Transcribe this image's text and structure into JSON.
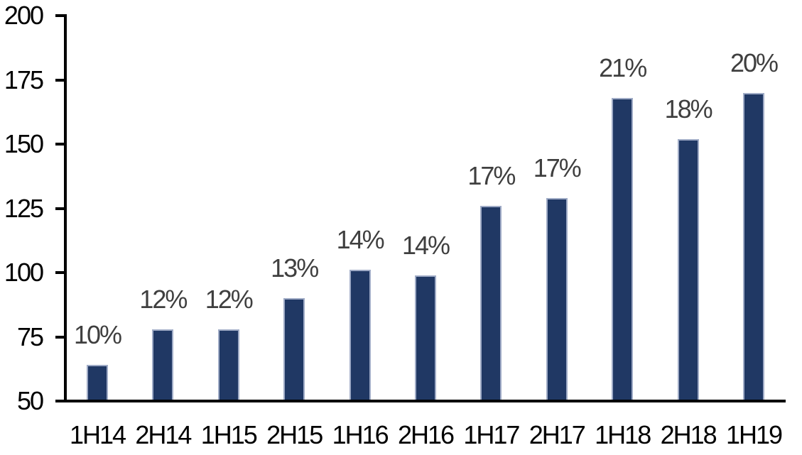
{
  "chart_data": {
    "type": "bar",
    "title": "",
    "xlabel": "",
    "ylabel": "",
    "categories": [
      "1H14",
      "2H14",
      "1H15",
      "2H15",
      "1H16",
      "2H16",
      "1H17",
      "2H17",
      "1H18",
      "2H18",
      "1H19"
    ],
    "series": [
      {
        "name": "value",
        "values": [
          64,
          78,
          78,
          90,
          101,
          99,
          126,
          129,
          168,
          152,
          170
        ],
        "data_labels": [
          "10%",
          "12%",
          "12%",
          "13%",
          "14%",
          "14%",
          "17%",
          "17%",
          "21%",
          "18%",
          "20%"
        ]
      }
    ],
    "ylim": [
      50,
      200
    ],
    "yticks": [
      50,
      75,
      100,
      125,
      150,
      175,
      200
    ],
    "grid": false,
    "legend_position": "none",
    "colors": {
      "bar_fill": "#203864",
      "bar_border": "#9fabc6",
      "data_label": "#3f3f3f",
      "axis": "#000000",
      "background": "#ffffff"
    }
  }
}
